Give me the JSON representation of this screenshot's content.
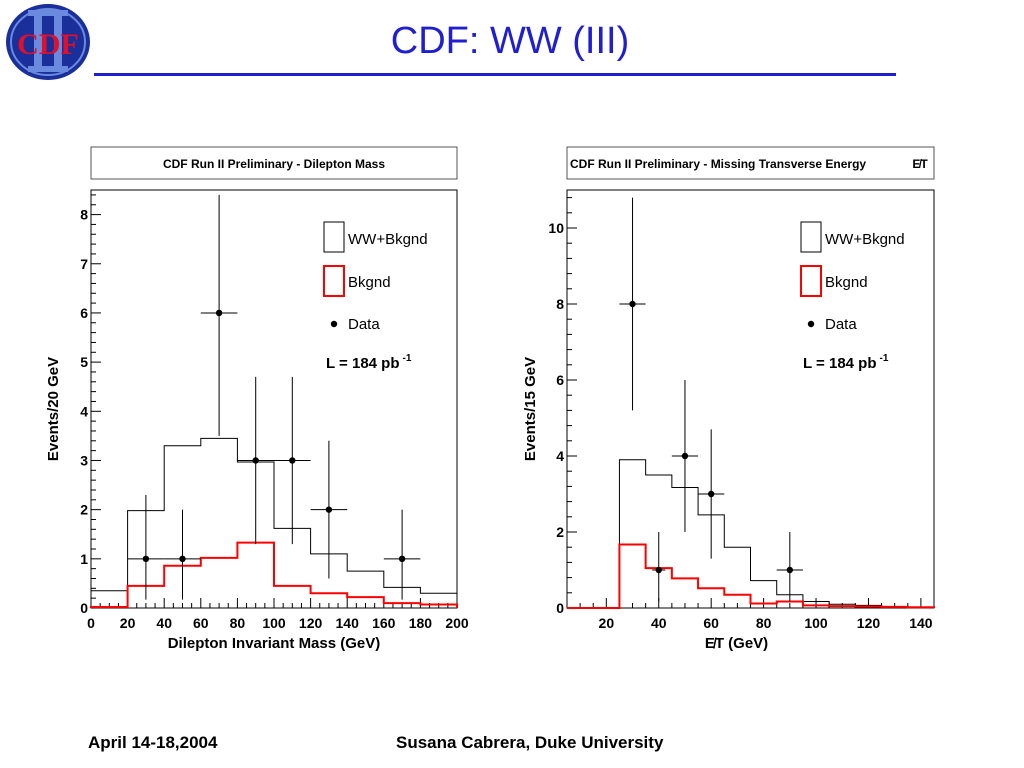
{
  "slide": {
    "title": "CDF:  WW (III)",
    "logo_text": "CDF",
    "footer_left": "April 14-18,2004",
    "footer_right": "Susana Cabrera, Duke University"
  },
  "colors": {
    "title_blue": "#1f1fd0",
    "logo_red": "#e0102a",
    "logo_blue": "#1a2f9a",
    "ww_line": "#000000",
    "bkg_line": "#ff0000"
  },
  "chart_data": [
    {
      "type": "histogram",
      "title": "CDF Run II Preliminary - Dilepton Mass",
      "title_symbol": "",
      "xlabel": "Dilepton Invariant Mass (GeV)",
      "ylabel": "Events/20 GeV",
      "xlim": [
        0,
        200
      ],
      "ylim": [
        0,
        8.5
      ],
      "x_ticks": [
        0,
        20,
        40,
        60,
        80,
        100,
        120,
        140,
        160,
        180,
        200
      ],
      "y_ticks": [
        0,
        1,
        2,
        3,
        4,
        5,
        6,
        7,
        8
      ],
      "grid": false,
      "legend_position": "top-right",
      "legend": {
        "ww": "WW+Bkgnd",
        "bkg": "Bkgnd",
        "data": "Data"
      },
      "annotation": {
        "prefix": "L = 184 pb",
        "sup": "-1"
      },
      "series": [
        {
          "name": "WW+Bkgnd",
          "kind": "step",
          "color": "#000000",
          "edges": [
            0,
            20,
            40,
            60,
            80,
            100,
            120,
            140,
            160,
            180,
            200
          ],
          "values": [
            0.35,
            1.98,
            3.3,
            3.45,
            2.97,
            1.62,
            1.1,
            0.75,
            0.42,
            0.3
          ]
        },
        {
          "name": "Bkgnd",
          "kind": "step",
          "color": "#ff0000",
          "edges": [
            0,
            20,
            40,
            60,
            80,
            100,
            120,
            140,
            160,
            180,
            200
          ],
          "values": [
            0.02,
            0.45,
            0.86,
            1.02,
            1.33,
            0.45,
            0.3,
            0.22,
            0.1,
            0.07
          ]
        },
        {
          "name": "Data",
          "kind": "points",
          "color": "#000000",
          "points": [
            {
              "x": 30,
              "y": 1,
              "xerr": 10,
              "ylo": 0.17,
              "yhi": 2.3
            },
            {
              "x": 50,
              "y": 1,
              "xerr": 10,
              "ylo": 0.17,
              "yhi": 2.0
            },
            {
              "x": 70,
              "y": 6,
              "xerr": 10,
              "ylo": 3.5,
              "yhi": 8.4
            },
            {
              "x": 90,
              "y": 3,
              "xerr": 10,
              "ylo": 1.3,
              "yhi": 4.7
            },
            {
              "x": 110,
              "y": 3,
              "xerr": 10,
              "ylo": 1.3,
              "yhi": 4.7
            },
            {
              "x": 130,
              "y": 2,
              "xerr": 10,
              "ylo": 0.6,
              "yhi": 3.4
            },
            {
              "x": 170,
              "y": 1,
              "xerr": 10,
              "ylo": 0.17,
              "yhi": 2.0
            }
          ]
        }
      ]
    },
    {
      "type": "histogram",
      "title": "CDF Run II Preliminary - Missing Transverse Energy",
      "title_symbol": "E̸T",
      "xlabel": "E̸T (GeV)",
      "ylabel": "Events/15 GeV",
      "xlim": [
        5,
        145
      ],
      "ylim": [
        0,
        11
      ],
      "x_ticks": [
        20,
        40,
        60,
        80,
        100,
        120,
        140
      ],
      "y_ticks": [
        0,
        2,
        4,
        6,
        8,
        10
      ],
      "grid": false,
      "legend_position": "top-right",
      "legend": {
        "ww": "WW+Bkgnd",
        "bkg": "Bkgnd",
        "data": "Data"
      },
      "annotation": {
        "prefix": "L = 184 pb",
        "sup": "-1"
      },
      "series": [
        {
          "name": "WW+Bkgnd",
          "kind": "step",
          "color": "#000000",
          "edges": [
            5,
            25,
            35,
            45,
            55,
            65,
            75,
            85,
            95,
            105,
            115,
            125,
            135,
            145
          ],
          "values": [
            0,
            3.9,
            3.5,
            3.17,
            2.45,
            1.6,
            0.72,
            0.35,
            0.17,
            0.1,
            0.07,
            0.04,
            0.02
          ]
        },
        {
          "name": "Bkgnd",
          "kind": "step",
          "color": "#ff0000",
          "edges": [
            5,
            25,
            35,
            45,
            55,
            65,
            75,
            85,
            95,
            105,
            115,
            125,
            135,
            145
          ],
          "values": [
            0,
            1.67,
            1.05,
            0.78,
            0.52,
            0.35,
            0.12,
            0.17,
            0.07,
            0.05,
            0.04,
            0.03,
            0.02
          ]
        },
        {
          "name": "Data",
          "kind": "points",
          "color": "#000000",
          "points": [
            {
              "x": 30,
              "y": 8,
              "xerr": 5,
              "ylo": 5.2,
              "yhi": 10.8
            },
            {
              "x": 40,
              "y": 1,
              "xerr": 2.5,
              "ylo": 0.17,
              "yhi": 2.0
            },
            {
              "x": 50,
              "y": 4,
              "xerr": 5,
              "ylo": 2.0,
              "yhi": 6.0
            },
            {
              "x": 60,
              "y": 3,
              "xerr": 5,
              "ylo": 1.3,
              "yhi": 4.7
            },
            {
              "x": 90,
              "y": 1,
              "xerr": 5,
              "ylo": 0.17,
              "yhi": 2.0
            }
          ]
        }
      ]
    }
  ]
}
